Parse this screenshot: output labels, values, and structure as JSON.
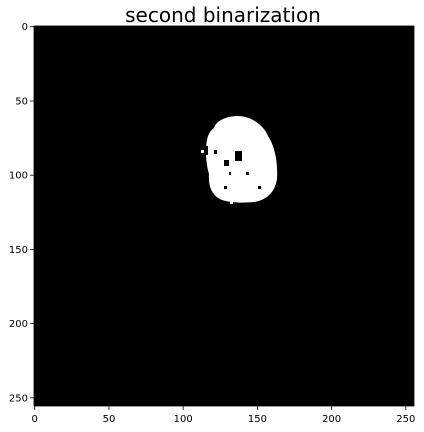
{
  "figure": {
    "title": "second binarization",
    "background_color": "#000000",
    "foreground_color": "#ffffff"
  },
  "axes": {
    "x_ticks": [
      0,
      50,
      100,
      150,
      200,
      250
    ],
    "y_ticks": [
      0,
      50,
      100,
      150,
      200,
      250
    ],
    "x_range": [
      -0.5,
      255.5
    ],
    "y_range": [
      -0.5,
      255.5
    ]
  }
}
